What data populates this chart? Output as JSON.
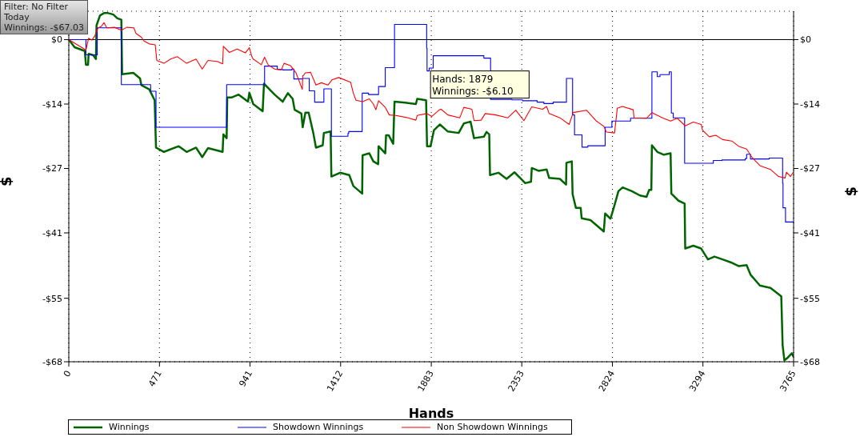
{
  "chart_data": {
    "type": "line",
    "xlabel": "Hands",
    "ylabel": "$",
    "y2label": "$",
    "xlim": [
      0,
      3765
    ],
    "xticks": [
      0,
      471,
      941,
      1412,
      1883,
      2353,
      2824,
      3294,
      3765
    ],
    "ylim": [
      -68,
      6
    ],
    "yticks": [
      {
        "value": 0,
        "label": "$0"
      },
      {
        "value": -13.6,
        "label": "-$14"
      },
      {
        "value": -27.2,
        "label": "-$27"
      },
      {
        "value": -40.8,
        "label": "-$41"
      },
      {
        "value": -54.6,
        "label": "-$55"
      },
      {
        "value": -68,
        "label": "-$68"
      }
    ],
    "y2lim": [
      -68,
      6
    ],
    "y2ticks": [
      {
        "value": 0,
        "label": "$0"
      },
      {
        "value": -13.6,
        "label": "-$14"
      },
      {
        "value": -27.2,
        "label": "-$27"
      },
      {
        "value": -40.8,
        "label": "-$41"
      },
      {
        "value": -54.6,
        "label": "-$55"
      },
      {
        "value": -68,
        "label": "-$68"
      }
    ],
    "grid": true,
    "legend": "bottom",
    "marker": "none",
    "ref_lines": [
      {
        "axis": "y",
        "value": 0,
        "color": "#000000",
        "line_style": "solid"
      }
    ],
    "annotations": [
      "Filter: No Filter\nToday\nWinnings: -$67.03",
      {
        "text": "Hands: 1879\nWinnings: -$6.10",
        "x": 1879,
        "y": -6.1
      }
    ],
    "series": [
      {
        "name": "Winnings",
        "color": "#006400",
        "x": [
          0,
          30,
          83,
          89,
          100,
          103,
          127,
          141,
          144,
          162,
          183,
          204,
          231,
          252,
          273,
          277,
          335,
          370,
          377,
          418,
          446,
          453,
          494,
          571,
          612,
          661,
          693,
          723,
          799,
          803,
          820,
          823,
          848,
          882,
          931,
          938,
          958,
          1007,
          1014,
          1069,
          1111,
          1138,
          1163,
          1173,
          1208,
          1215,
          1229,
          1246,
          1270,
          1284,
          1319,
          1325,
          1360,
          1364,
          1409,
          1457,
          1478,
          1524,
          1526,
          1561,
          1582,
          1607,
          1609,
          1644,
          1648,
          1662,
          1685,
          1692,
          1748,
          1803,
          1810,
          1856,
          1861,
          1879,
          1897,
          1928,
          1969,
          2025,
          2052,
          2087,
          2105,
          2156,
          2170,
          2184,
          2188,
          2232,
          2274,
          2315,
          2357,
          2371,
          2401,
          2405,
          2440,
          2482,
          2495,
          2551,
          2583,
          2585,
          2613,
          2617,
          2634,
          2659,
          2664,
          2710,
          2779,
          2786,
          2814,
          2835,
          2855,
          2877,
          2925,
          2967,
          3001,
          3015,
          3026,
          3029,
          3057,
          3091,
          3126,
          3130,
          3167,
          3199,
          3202,
          3244,
          3285,
          3320,
          3354,
          3396,
          3438,
          3479,
          3521,
          3541,
          3590,
          3645,
          3701,
          3708,
          3717,
          3735,
          3756,
          3765
        ],
        "values": [
          0,
          -1.6,
          -2.4,
          -5.3,
          -5.3,
          -3.0,
          -3.3,
          -4.1,
          3.0,
          5.1,
          5.6,
          5.6,
          5.3,
          4.5,
          4.2,
          -7.3,
          -7.0,
          -8.2,
          -9.6,
          -10.5,
          -12.8,
          -22.8,
          -23.7,
          -22.5,
          -23.7,
          -22.8,
          -24.8,
          -22.9,
          -23.7,
          -20.0,
          -20.8,
          -12.2,
          -12.2,
          -11.6,
          -13.1,
          -11.2,
          -13.6,
          -15.1,
          -9.3,
          -11.6,
          -13.1,
          -11.3,
          -12.5,
          -14.8,
          -15.6,
          -18.5,
          -15.4,
          -15.4,
          -19.7,
          -22.8,
          -22.3,
          -19.7,
          -19.4,
          -28.9,
          -28.1,
          -28.6,
          -30.9,
          -32.5,
          -24.4,
          -24.0,
          -25.7,
          -26.3,
          -22.5,
          -24.0,
          -20.2,
          -20.2,
          -22.0,
          -13.1,
          -13.3,
          -13.6,
          -12.5,
          -12.8,
          -22.5,
          -22.5,
          -19.1,
          -17.9,
          -19.4,
          -19.7,
          -17.7,
          -17.3,
          -20.8,
          -20.5,
          -19.5,
          -20.0,
          -28.6,
          -28.1,
          -29.4,
          -28.0,
          -29.7,
          -30.3,
          -30.0,
          -27.1,
          -27.7,
          -27.4,
          -29.2,
          -29.4,
          -30.6,
          -26.0,
          -25.7,
          -32.6,
          -35.5,
          -35.5,
          -37.7,
          -38.1,
          -40.5,
          -36.7,
          -37.8,
          -34.9,
          -32.0,
          -31.2,
          -32.0,
          -32.9,
          -33.2,
          -31.7,
          -31.7,
          -22.3,
          -23.7,
          -24.3,
          -24.0,
          -32.5,
          -34.0,
          -34.6,
          -44.1,
          -43.5,
          -44.1,
          -46.4,
          -45.8,
          -46.4,
          -47.0,
          -47.8,
          -47.6,
          -49.6,
          -51.9,
          -52.4,
          -54.2,
          -64.5,
          -67.7,
          -67.1,
          -66.2,
          -67.0
        ]
      },
      {
        "name": "Showdown Winnings",
        "color": "#0000ff",
        "type": "step",
        "x": [
          0,
          89,
          148,
          273,
          425,
          453,
          820,
          1017,
          1083,
          1111,
          1159,
          1169,
          1215,
          1249,
          1277,
          1325,
          1364,
          1450,
          1454,
          1524,
          1557,
          1609,
          1644,
          1692,
          1859,
          1861,
          1872,
          1893,
          2156,
          2191,
          2302,
          2357,
          2433,
          2468,
          2516,
          2585,
          2617,
          2627,
          2666,
          2696,
          2786,
          2821,
          2918,
          3029,
          3057,
          3071,
          3119,
          3130,
          3140,
          3199,
          3348,
          3393,
          3514,
          3521,
          3541,
          3638,
          3708,
          3710,
          3723,
          3765
        ],
        "values": [
          0,
          -3.2,
          2.5,
          -9.5,
          -10.9,
          -18.5,
          -9.5,
          -5.6,
          -6.3,
          -6.4,
          -6.2,
          -8.3,
          -8.2,
          -10.8,
          -13.2,
          -10.4,
          -20.4,
          -19.8,
          -19.4,
          -11.3,
          -11.6,
          -9.9,
          -5.9,
          3.2,
          -1.8,
          -6.6,
          -6.0,
          -3.4,
          -3.9,
          -12.6,
          -12.7,
          -12.9,
          -13.2,
          -13.5,
          -13.2,
          -8.2,
          -15.9,
          -20.1,
          -22.7,
          -22.4,
          -18.5,
          -17.2,
          -16.6,
          -6.8,
          -7.8,
          -7.4,
          -6.8,
          -15.5,
          -16.5,
          -26.1,
          -25.5,
          -25.4,
          -25.1,
          -24.2,
          -25.2,
          -25.0,
          -30.3,
          -35.5,
          -38.5,
          -38.5
        ]
      },
      {
        "name": "Non Showdown Winnings",
        "color": "#ff0000",
        "x": [
          0,
          89,
          103,
          120,
          134,
          152,
          169,
          183,
          197,
          238,
          273,
          301,
          338,
          349,
          377,
          391,
          418,
          449,
          457,
          494,
          529,
          564,
          612,
          661,
          693,
          723,
          771,
          799,
          803,
          834,
          875,
          917,
          938,
          951,
          958,
          1000,
          1017,
          1035,
          1069,
          1104,
          1118,
          1152,
          1180,
          1213,
          1215,
          1218,
          1229,
          1256,
          1284,
          1312,
          1346,
          1367,
          1402,
          1464,
          1478,
          1492,
          1526,
          1561,
          1582,
          1595,
          1609,
          1644,
          1665,
          1699,
          1762,
          1803,
          1810,
          1859,
          1886,
          1925,
          1934,
          1969,
          2031,
          2052,
          2094,
          2105,
          2142,
          2163,
          2218,
          2281,
          2322,
          2364,
          2405,
          2461,
          2482,
          2495,
          2551,
          2599,
          2620,
          2689,
          2738,
          2779,
          2793,
          2835,
          2849,
          2876,
          2932,
          2936,
          3001,
          3029,
          3084,
          3126,
          3161,
          3202,
          3244,
          3285,
          3292,
          3327,
          3361,
          3396,
          3444,
          3479,
          3521,
          3548,
          3590,
          3645,
          3687,
          3721,
          3728,
          3749,
          3763
        ],
        "values": [
          0,
          -2.2,
          0.3,
          -0.1,
          0.7,
          2.5,
          2.8,
          3.6,
          2.5,
          2.6,
          2.0,
          2.6,
          2.5,
          1.3,
          0.5,
          -0.3,
          -0.9,
          -1.1,
          -4.4,
          -5.0,
          -4.1,
          -3.6,
          -5.0,
          -4.1,
          -6.2,
          -4.4,
          -4.6,
          -5.1,
          -1.4,
          -2.7,
          -2.0,
          -2.8,
          -1.7,
          -3.6,
          -4.1,
          -5.3,
          -3.7,
          -5.3,
          -6.2,
          -6.4,
          -5.0,
          -5.5,
          -7.0,
          -10.5,
          -7.6,
          -7.6,
          -7.0,
          -6.9,
          -9.6,
          -9.1,
          -9.6,
          -8.5,
          -8.0,
          -9.0,
          -11.3,
          -12.8,
          -13.1,
          -12.5,
          -13.6,
          -14.8,
          -12.9,
          -14.3,
          -15.9,
          -16.0,
          -16.5,
          -17.0,
          -16.0,
          -15.6,
          -16.2,
          -14.8,
          -14.7,
          -15.9,
          -16.5,
          -14.3,
          -14.7,
          -17.1,
          -17.0,
          -15.6,
          -15.9,
          -16.5,
          -14.9,
          -17.1,
          -14.2,
          -14.7,
          -14.1,
          -15.6,
          -16.5,
          -17.9,
          -15.4,
          -14.9,
          -17.1,
          -18.3,
          -19.5,
          -19.7,
          -14.5,
          -14.1,
          -14.8,
          -16.5,
          -16.6,
          -15.4,
          -16.5,
          -17.2,
          -16.6,
          -18.2,
          -17.4,
          -17.9,
          -19.1,
          -20.5,
          -20.2,
          -21.1,
          -21.4,
          -22.5,
          -23.1,
          -24.8,
          -26.6,
          -27.4,
          -28.9,
          -29.2,
          -28.0,
          -28.9,
          -28.0
        ]
      }
    ]
  }
}
